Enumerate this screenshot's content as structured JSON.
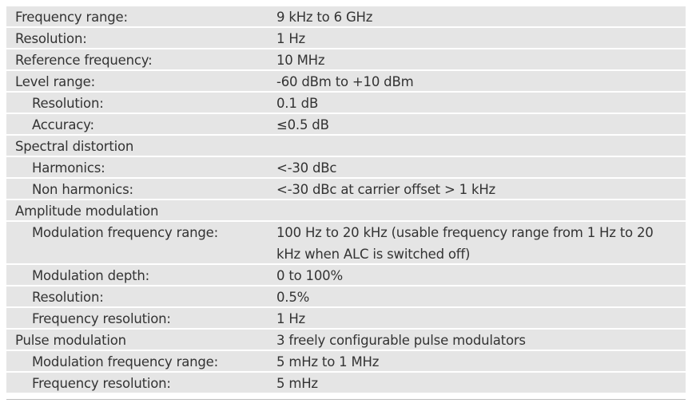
{
  "spec_rows": [
    {
      "label": "Frequency range:",
      "value": "9 kHz to 6 GHz",
      "indent": false
    },
    {
      "label": "Resolution:",
      "value": "1 Hz",
      "indent": false
    },
    {
      "label": "Reference frequency:",
      "value": "10 MHz",
      "indent": false
    },
    {
      "label": "Level range:",
      "value": "-60 dBm to +10 dBm",
      "indent": false
    },
    {
      "label": "Resolution:",
      "value": "0.1 dB",
      "indent": true
    },
    {
      "label": "Accuracy:",
      "value": "≤0.5 dB",
      "indent": true
    },
    {
      "label": "Spectral distortion",
      "value": "",
      "indent": false
    },
    {
      "label": "Harmonics:",
      "value": "<-30 dBc",
      "indent": true
    },
    {
      "label": "Non harmonics:",
      "value": "<-30 dBc at carrier offset > 1 kHz",
      "indent": true
    },
    {
      "label": "Amplitude modulation",
      "value": "",
      "indent": false
    },
    {
      "label": "Modulation frequency range:",
      "value": "100 Hz to 20 kHz (usable frequency range from 1 Hz to 20 kHz when ALC is switched off)",
      "indent": true
    },
    {
      "label": "Modulation depth:",
      "value": "0 to 100%",
      "indent": true
    },
    {
      "label": "Resolution:",
      "value": "0.5%",
      "indent": true
    },
    {
      "label": "Frequency resolution:",
      "value": "1 Hz",
      "indent": true
    },
    {
      "label": "Pulse modulation",
      "value": "3 freely configurable pulse modulators",
      "indent": false
    },
    {
      "label": "Modulation frequency range:",
      "value": "5 mHz to 1 MHz",
      "indent": true
    },
    {
      "label": "Frequency resolution:",
      "value": "5 mHz",
      "indent": true
    }
  ]
}
